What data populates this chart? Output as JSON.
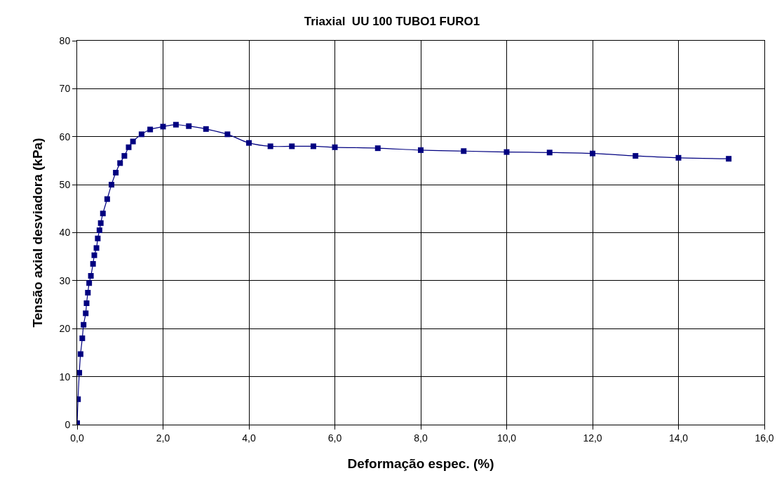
{
  "chart_data": {
    "type": "line",
    "title": "Triaxial  UU 100 TUBO1 FURO1",
    "xlabel": "Deformação espec. (%)",
    "ylabel": "Tensão axial desviadora (kPa)",
    "x": [
      0,
      0.02,
      0.05,
      0.08,
      0.12,
      0.15,
      0.2,
      0.22,
      0.25,
      0.28,
      0.32,
      0.37,
      0.4,
      0.45,
      0.48,
      0.52,
      0.55,
      0.6,
      0.7,
      0.8,
      0.9,
      1.0,
      1.1,
      1.2,
      1.3,
      1.5,
      1.7,
      2.0,
      2.3,
      2.6,
      3.0,
      3.5,
      4.0,
      4.5,
      5.0,
      5.5,
      6.0,
      7.0,
      8.0,
      9.0,
      10.0,
      11.0,
      12.0,
      13.0,
      14.0,
      15.17
    ],
    "series": [
      {
        "color": "#000080",
        "values": [
          0.3,
          5.3,
          10.8,
          14.7,
          18,
          20.8,
          23.2,
          25.3,
          27.5,
          29.5,
          31,
          33.5,
          35.3,
          36.8,
          38.8,
          40.5,
          42,
          44,
          47,
          50,
          52.5,
          54.5,
          56,
          57.8,
          59,
          60.5,
          61.5,
          62.1,
          62.5,
          62.2,
          61.6,
          60.5,
          58.7,
          58.0,
          58.0,
          58.0,
          57.8,
          57.6,
          57.2,
          57.0,
          56.8,
          56.7,
          56.5,
          56.0,
          55.6,
          55.4
        ]
      }
    ],
    "xlim": [
      0,
      16
    ],
    "ylim": [
      0,
      80
    ],
    "xticks": [
      {
        "value": 0,
        "label": "0,0"
      },
      {
        "value": 2,
        "label": "2,0"
      },
      {
        "value": 4,
        "label": "4,0"
      },
      {
        "value": 6,
        "label": "6,0"
      },
      {
        "value": 8,
        "label": "8,0"
      },
      {
        "value": 10,
        "label": "10,0"
      },
      {
        "value": 12,
        "label": "12,0"
      },
      {
        "value": 14,
        "label": "14,0"
      },
      {
        "value": 16,
        "label": "16,0"
      }
    ],
    "yticks": [
      0,
      10,
      20,
      30,
      40,
      50,
      60,
      70,
      80
    ],
    "grid": true,
    "marker": "square",
    "line_style": "solid"
  }
}
